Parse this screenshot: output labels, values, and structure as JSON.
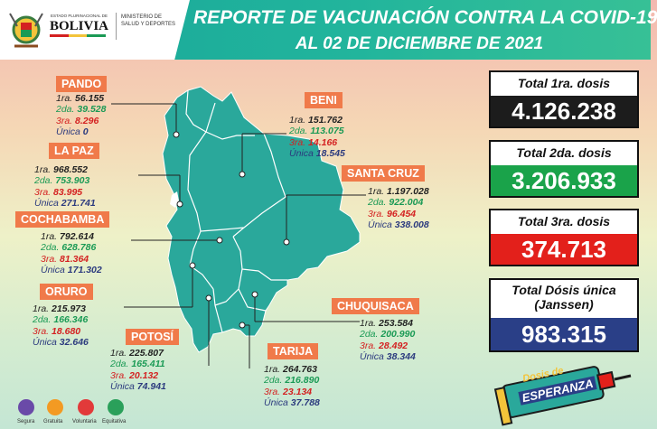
{
  "header": {
    "org_line1": "ESTADO PLURINACIONAL DE",
    "org_line2": "BOLIVIA",
    "ministry_line1": "MINISTERIO DE",
    "ministry_line2": "SALUD Y DEPORTES",
    "title_line1": "REPORTE DE VACUNACIÓN CONTRA LA COVID-19",
    "title_line2": "AL 02 DE DICIEMBRE DE 2021"
  },
  "dose_labels": {
    "d1": "1ra.",
    "d2": "2da.",
    "d3": "3ra.",
    "du": "Única"
  },
  "departments": [
    {
      "name": "PANDO",
      "d1": "56.155",
      "d2": "39.528",
      "d3": "8.296",
      "du": "0"
    },
    {
      "name": "BENI",
      "d1": "151.762",
      "d2": "113.075",
      "d3": "14.166",
      "du": "18.545"
    },
    {
      "name": "LA PAZ",
      "d1": "968.552",
      "d2": "753.903",
      "d3": "83.995",
      "du": "271.741"
    },
    {
      "name": "SANTA CRUZ",
      "d1": "1.197.028",
      "d2": "922.004",
      "d3": "96.454",
      "du": "338.008"
    },
    {
      "name": "COCHABAMBA",
      "d1": "792.614",
      "d2": "628.786",
      "d3": "81.364",
      "du": "171.302"
    },
    {
      "name": "ORURO",
      "d1": "215.973",
      "d2": "166.346",
      "d3": "18.680",
      "du": "32.646"
    },
    {
      "name": "CHUQUISACA",
      "d1": "253.584",
      "d2": "200.990",
      "d3": "28.492",
      "du": "38.344"
    },
    {
      "name": "POTOSÍ",
      "d1": "225.807",
      "d2": "165.411",
      "d3": "20.132",
      "du": "74.941"
    },
    {
      "name": "TARIJA",
      "d1": "264.763",
      "d2": "216.890",
      "d3": "23.134",
      "du": "37.788"
    }
  ],
  "totals": [
    {
      "title": "Total 1ra. dosis",
      "value": "4.126.238",
      "color": "#1c1c1c"
    },
    {
      "title": "Total 2da. dosis",
      "value": "3.206.933",
      "color": "#1aa34a"
    },
    {
      "title": "Total 3ra. dosis",
      "value": "374.713",
      "color": "#e3201b"
    },
    {
      "title": "Total Dósis única\n(Janssen)",
      "value": "983.315",
      "color": "#2a3f87"
    }
  ],
  "footer": {
    "labels": [
      "Segura",
      "Gratuita",
      "Voluntaria",
      "Equitativa"
    ]
  },
  "badge": {
    "line1": "Dosis de",
    "line2": "ESPERANZA"
  },
  "colors": {
    "map_fill": "#2aa89b",
    "tag": "#f07a4a",
    "header": "#1ea99a"
  }
}
